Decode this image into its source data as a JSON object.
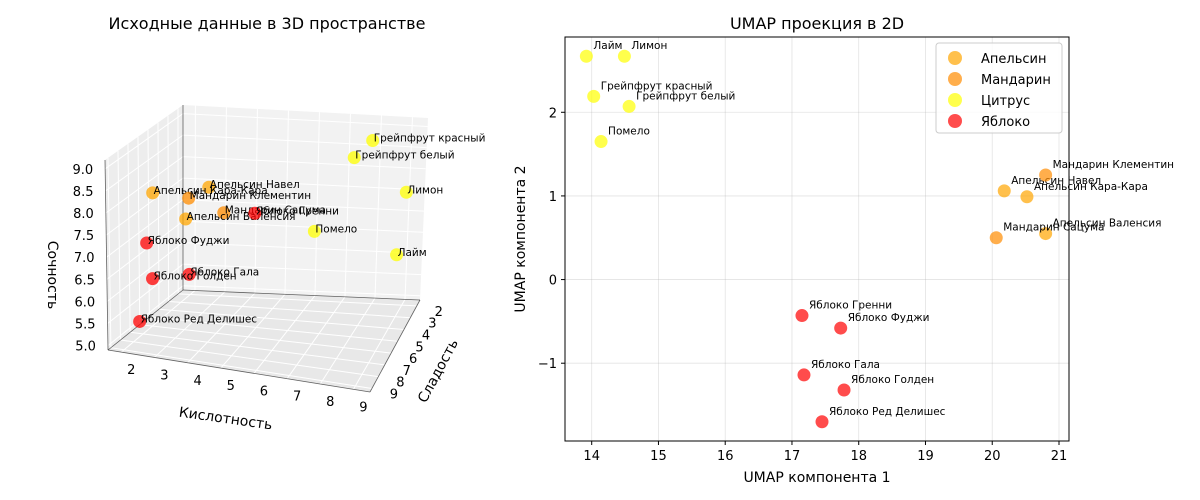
{
  "chart_data": [
    {
      "type": "scatter3d",
      "title": "Исходные данные в 3D пространстве",
      "xlabel": "Кислотность",
      "ylabel": "Сладость",
      "zlabel": "Сочность",
      "xlim": [
        1.6,
        9.5
      ],
      "ylim": [
        1.5,
        9.3
      ],
      "zlim": [
        4.9,
        9.2
      ],
      "xticks": [
        "2",
        "3",
        "4",
        "5",
        "6",
        "7",
        "8",
        "9"
      ],
      "yticks": [
        "2",
        "3",
        "4",
        "5",
        "6",
        "7",
        "8",
        "9"
      ],
      "zticks": [
        "5.0",
        "5.5",
        "6.0",
        "6.5",
        "7.0",
        "7.5",
        "8.0",
        "8.5",
        "9.0"
      ],
      "points": [
        {
          "label": "Апельсин Навел",
          "group": "Апельсин",
          "x": 4.0,
          "y": 6.3,
          "z": 8.3
        },
        {
          "label": "Апельсин Кара-Кара",
          "group": "Апельсин",
          "x": 2.5,
          "y": 7.2,
          "z": 8.2
        },
        {
          "label": "Мандарин Клементин",
          "group": "Мандарин",
          "x": 3.5,
          "y": 6.8,
          "z": 8.1
        },
        {
          "label": "Мандарин Сацума",
          "group": "Мандарин",
          "x": 4.5,
          "y": 6.5,
          "z": 7.8
        },
        {
          "label": "Апельсин Валенсия",
          "group": "Апельсин",
          "x": 3.5,
          "y": 7.2,
          "z": 7.7
        },
        {
          "label": "Яблоко Гренни",
          "group": "Яблоко",
          "x": 4.8,
          "y": 4.0,
          "z": 7.3
        },
        {
          "label": "Яблоко Фуджи",
          "group": "Яблоко",
          "x": 2.5,
          "y": 8.0,
          "z": 7.2
        },
        {
          "label": "Помело",
          "group": "Цитрус",
          "x": 6.5,
          "y": 3.2,
          "z": 6.8
        },
        {
          "label": "Яблоко Гала",
          "group": "Яблоко",
          "x": 3.5,
          "y": 7.0,
          "z": 6.4
        },
        {
          "label": "Яблоко Голден",
          "group": "Яблоко",
          "x": 2.5,
          "y": 7.5,
          "z": 6.3
        },
        {
          "label": "Яблоко Ред Делишес",
          "group": "Яблоко",
          "x": 2.5,
          "y": 9.0,
          "z": 5.6
        },
        {
          "label": "Грейпфрут красный",
          "group": "Цитрус",
          "x": 8.5,
          "y": 3.2,
          "z": 9.0
        },
        {
          "label": "Грейпфрут белый",
          "group": "Цитрус",
          "x": 8.0,
          "y": 3.7,
          "z": 8.7
        },
        {
          "label": "Лимон",
          "group": "Цитрус",
          "x": 9.5,
          "y": 3.0,
          "z": 7.8
        },
        {
          "label": "Лайм",
          "group": "Цитрус",
          "x": 9.0,
          "y": 2.5,
          "z": 6.2
        }
      ]
    },
    {
      "type": "scatter",
      "title": "UMAP проекция в 2D",
      "xlabel": "UMAP компонента 1",
      "ylabel": "UMAP компонента 2",
      "xlim": [
        13.6,
        21.15
      ],
      "ylim": [
        -1.93,
        2.9
      ],
      "xticks": [
        14,
        15,
        16,
        17,
        18,
        19,
        20,
        21
      ],
      "yticks": [
        -1,
        0,
        1,
        2
      ],
      "grid": true,
      "legend_position": "top-right",
      "series": [
        {
          "name": "Апельсин",
          "color": "#ffa500",
          "points": [
            {
              "label": "Апельсин Навел",
              "x": 20.18,
              "y": 1.06
            },
            {
              "label": "Апельсин Кара-Кара",
              "x": 20.52,
              "y": 0.99
            },
            {
              "label": "Апельсин Валенсия",
              "x": 20.8,
              "y": 0.55
            }
          ]
        },
        {
          "name": "Мандарин",
          "color": "#ff8c00",
          "points": [
            {
              "label": "Мандарин Клементин",
              "x": 20.8,
              "y": 1.25
            },
            {
              "label": "Мандарин Сацума",
              "x": 20.06,
              "y": 0.5
            }
          ]
        },
        {
          "name": "Цитрус",
          "color": "#ffff00",
          "points": [
            {
              "label": "Лайм",
              "x": 13.92,
              "y": 2.67
            },
            {
              "label": "Лимон",
              "x": 14.49,
              "y": 2.67
            },
            {
              "label": "Грейпфрут красный",
              "x": 14.03,
              "y": 2.19
            },
            {
              "label": "Грейпфрут белый",
              "x": 14.56,
              "y": 2.07
            },
            {
              "label": "Помело",
              "x": 14.14,
              "y": 1.65
            }
          ]
        },
        {
          "name": "Яблоко",
          "color": "#ff0000",
          "points": [
            {
              "label": "Яблоко Гренни",
              "x": 17.15,
              "y": -0.43
            },
            {
              "label": "Яблоко Фуджи",
              "x": 17.73,
              "y": -0.58
            },
            {
              "label": "Яблоко Гала",
              "x": 17.18,
              "y": -1.14
            },
            {
              "label": "Яблоко Голден",
              "x": 17.78,
              "y": -1.32
            },
            {
              "label": "Яблоко Ред Делишес",
              "x": 17.45,
              "y": -1.7
            }
          ]
        }
      ]
    }
  ]
}
